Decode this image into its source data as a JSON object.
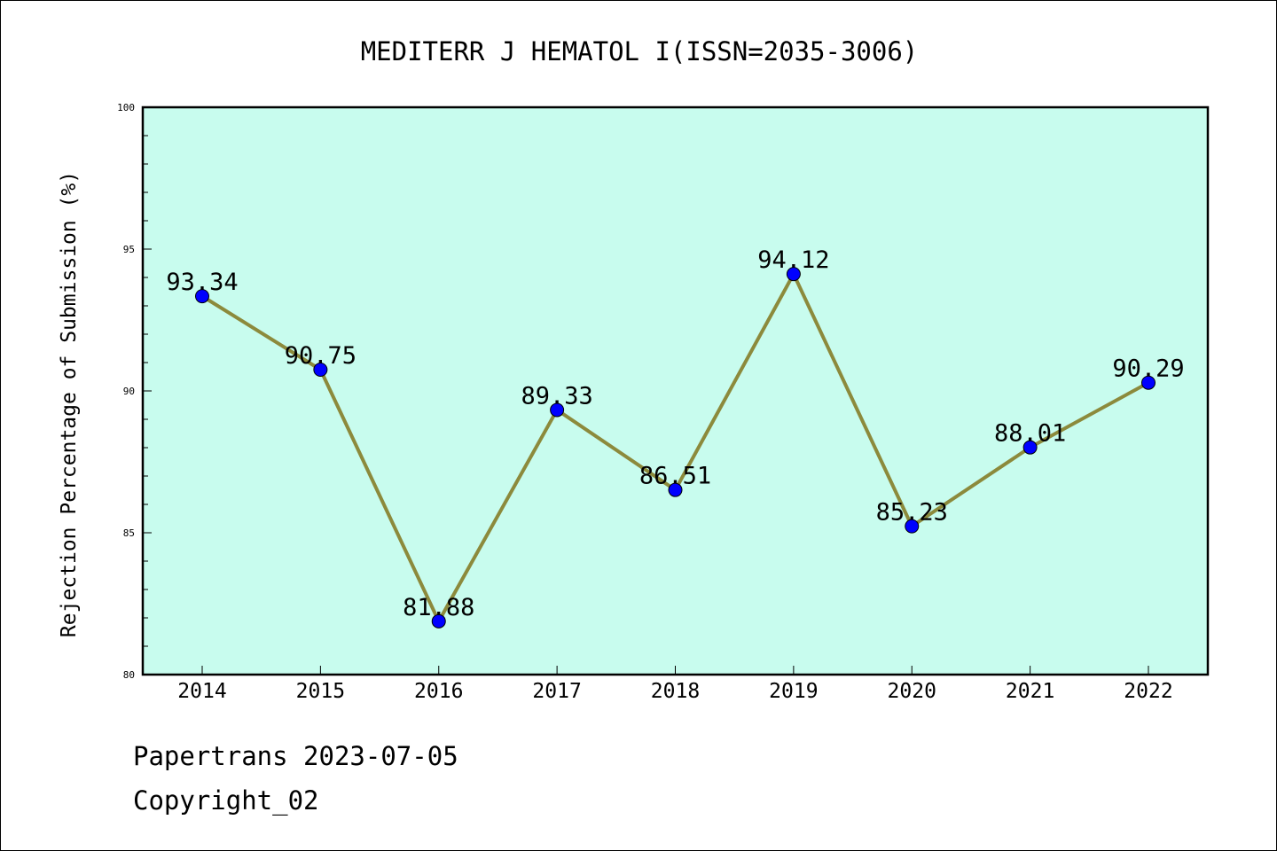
{
  "footer": {
    "source": "Papertrans 2023-07-05",
    "copyright": "Copyright_02"
  },
  "chart_data": {
    "type": "line",
    "title": "MEDITERR J HEMATOL I(ISSN=2035-3006)",
    "xlabel": "",
    "ylabel": "Rejection Percentage of Submission (%)",
    "categories": [
      "2014",
      "2015",
      "2016",
      "2017",
      "2018",
      "2019",
      "2020",
      "2021",
      "2022"
    ],
    "series": [
      {
        "values": [
          93.34,
          90.75,
          81.88,
          89.33,
          86.51,
          94.12,
          85.23,
          88.01,
          90.29
        ]
      }
    ],
    "data_labels": [
      "93.34",
      "90.75",
      "81.88",
      "89.33",
      "86.51",
      "94.12",
      "85.23",
      "88.01",
      "90.29"
    ],
    "ylim": [
      80,
      100
    ],
    "yticks": [
      "80",
      "85",
      "90",
      "95",
      "100"
    ],
    "grid": false,
    "colors": {
      "plot_background": "#c8fcee",
      "line": "#8c8a3c",
      "marker": "#0000ff"
    }
  }
}
